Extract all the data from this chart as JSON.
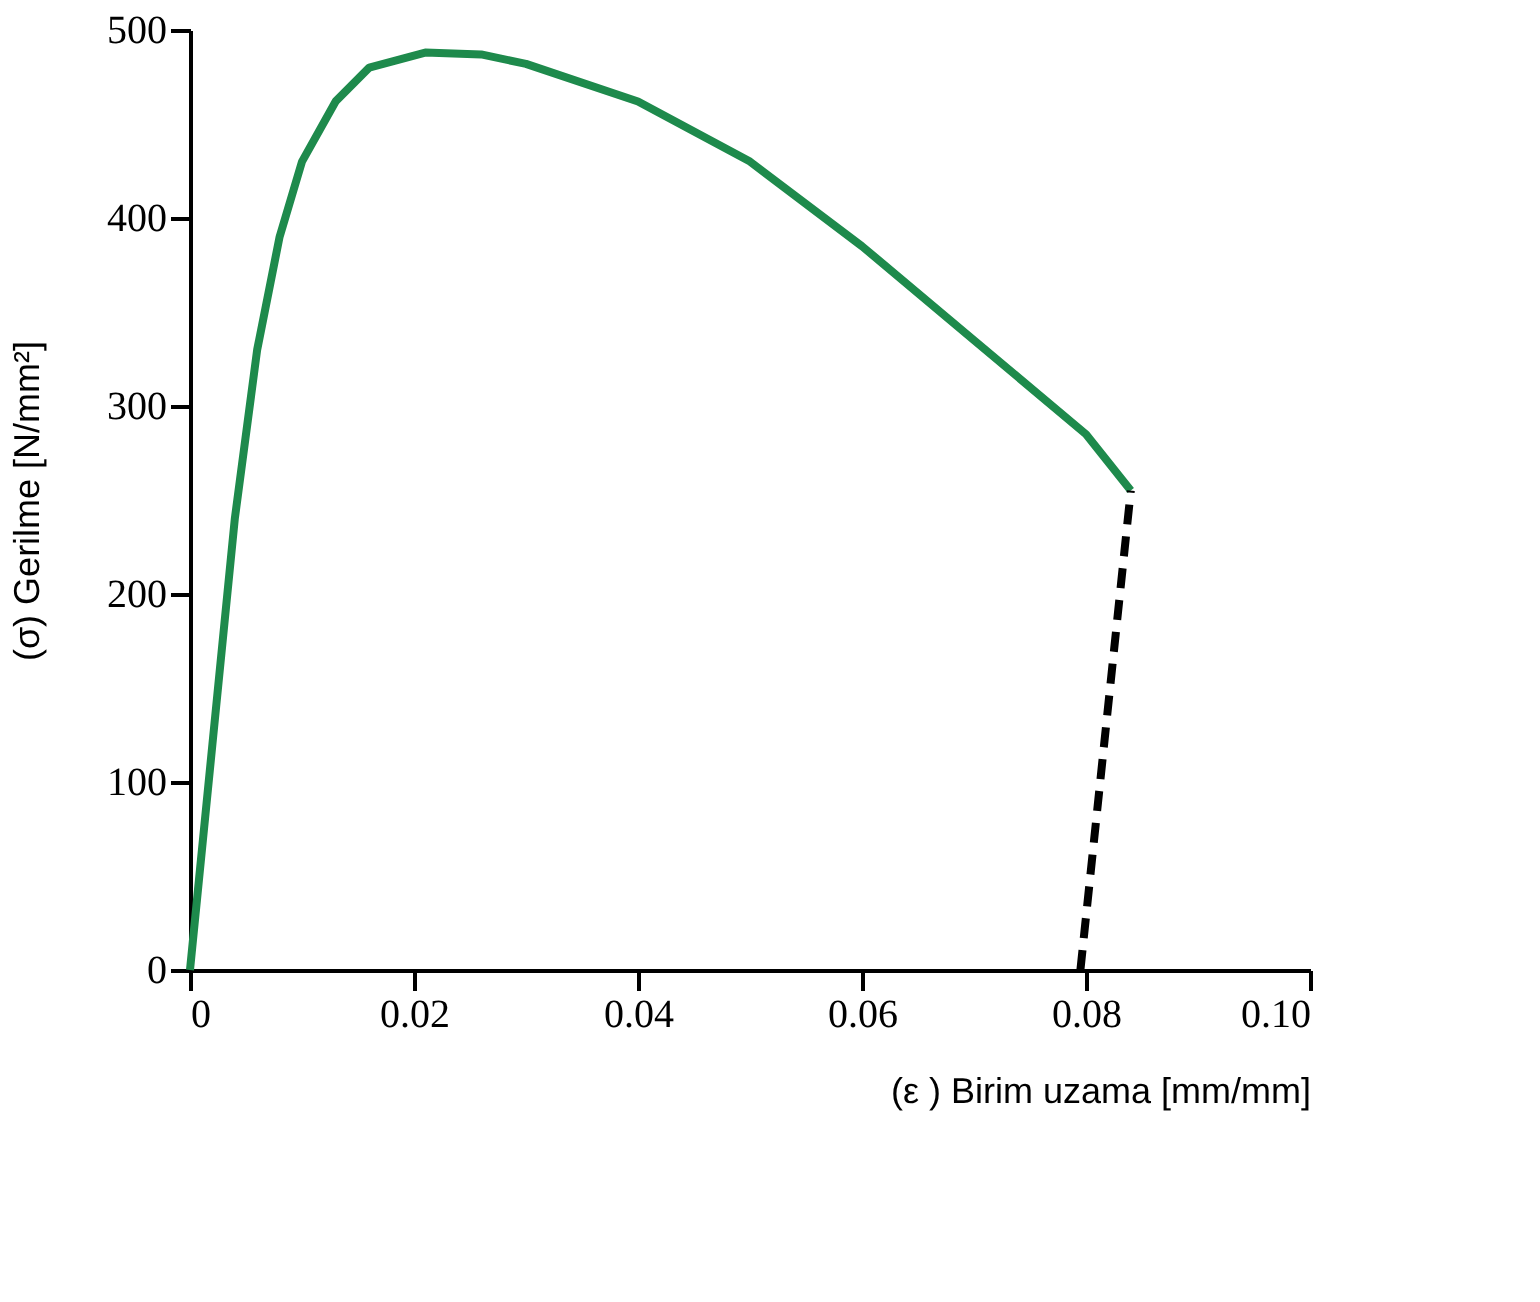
{
  "chart_data": {
    "type": "line",
    "xlabel": "(ε )  Birim uzama [mm/mm]",
    "ylabel": "(σ)   Gerilme [N/mm²]",
    "xlim": [
      0,
      0.1
    ],
    "xticks": [
      0,
      0.02,
      0.04,
      0.06,
      0.08,
      {
        "value": 0.1,
        "label": "0.10"
      }
    ],
    "ylim": [
      0,
      500
    ],
    "yticks": [
      0,
      100,
      200,
      300,
      400,
      500
    ],
    "grid": false,
    "series": [
      {
        "color": "#1e8a4c",
        "line_style": "solid",
        "x": [
          0,
          0.002,
          0.004,
          0.006,
          0.008,
          0.01,
          0.013,
          0.016,
          0.021,
          0.026,
          0.03,
          0.04,
          0.05,
          0.06,
          0.07,
          0.08,
          0.084
        ],
        "values": [
          0,
          120,
          240,
          330,
          390,
          430,
          462,
          480,
          488,
          487,
          482,
          462,
          430,
          385,
          335,
          285,
          255
        ]
      },
      {
        "color": "#000000",
        "line_style": "dashed",
        "x": [
          0.0795,
          0.084
        ],
        "values": [
          0,
          255
        ]
      }
    ]
  }
}
